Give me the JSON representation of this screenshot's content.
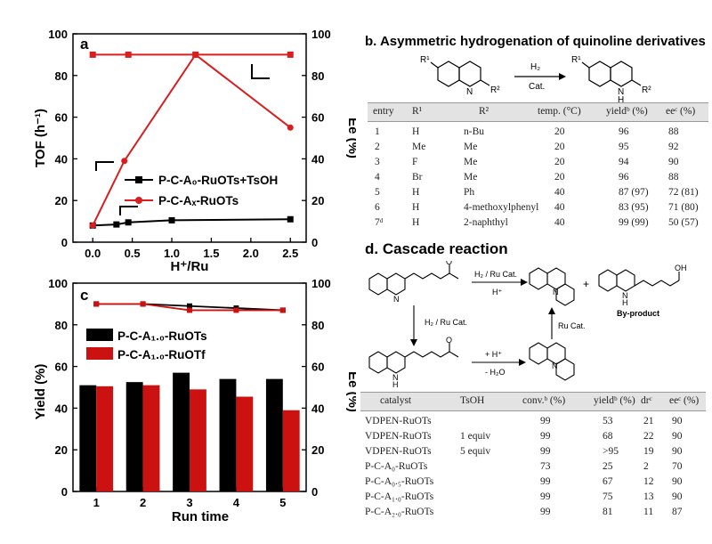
{
  "chart_data": [
    {
      "panel": "a",
      "type": "line",
      "xlabel": "H⁺/Ru",
      "ylabel": "TOF (h⁻¹)",
      "y2label": "Ee (%)",
      "xlim": [
        -0.25,
        2.7
      ],
      "ylim": [
        0,
        100
      ],
      "y2lim": [
        0,
        100
      ],
      "xticks": [
        "0.0",
        "0.5",
        "1.0",
        "1.5",
        "2.0",
        "2.5"
      ],
      "yticks": [
        "0",
        "20",
        "40",
        "60",
        "80",
        "100"
      ],
      "y2ticks": [
        "0",
        "20",
        "40",
        "60",
        "80",
        "100"
      ],
      "series": [
        {
          "name": "P-C-A₀-RuOTs+TsOH",
          "axis": "left",
          "color": "#000000",
          "marker": "square",
          "x": [
            0.0,
            0.3,
            0.45,
            1.0,
            2.5
          ],
          "y": [
            8,
            8.5,
            9.5,
            10.5,
            11
          ]
        },
        {
          "name": "P-C-Aₓ-RuOTs",
          "axis": "left",
          "color": "#d81e1e",
          "marker": "circle",
          "x": [
            0.0,
            0.4,
            1.3,
            2.5
          ],
          "y": [
            8,
            39,
            90,
            55
          ]
        },
        {
          "axis": "right",
          "color": "#d81e1e",
          "marker": "square",
          "x": [
            0.0,
            0.45,
            1.3,
            2.5
          ],
          "y": [
            90,
            90,
            90,
            90
          ]
        }
      ]
    },
    {
      "panel": "c",
      "type": "bar",
      "xlabel": "Run time",
      "ylabel": "Yield (%)",
      "y2label": "Ee (%)",
      "categories": [
        "1",
        "2",
        "3",
        "4",
        "5"
      ],
      "ylim": [
        0,
        100
      ],
      "y2lim": [
        0,
        100
      ],
      "yticks": [
        "0",
        "20",
        "40",
        "60",
        "80",
        "100"
      ],
      "y2ticks": [
        "0",
        "20",
        "40",
        "60",
        "80",
        "100"
      ],
      "series": [
        {
          "name": "P-C-A₁.₀-RuOTs",
          "type": "bar",
          "color": "#000000",
          "values": [
            51,
            52.5,
            57,
            54,
            54
          ]
        },
        {
          "name": "P-C-A₁.₀-RuOTf",
          "type": "bar",
          "color": "#cc1111",
          "values": [
            50.5,
            51,
            49,
            45.5,
            39
          ]
        },
        {
          "type": "line",
          "axis": "right",
          "color": "#000000",
          "values": [
            90,
            90,
            89,
            88,
            87
          ]
        },
        {
          "type": "line",
          "axis": "right",
          "color": "#cc1111",
          "values": [
            90,
            90,
            87,
            87,
            87
          ]
        }
      ]
    }
  ],
  "panel_a": {
    "label": "a"
  },
  "panel_c": {
    "label": "c"
  },
  "panel_b": {
    "title": "b. Asymmetric hydrogenation of quinoline derivatives",
    "scheme": {
      "r1": "R¹",
      "r2": "R²",
      "h2": "H₂",
      "cat": "Cat.",
      "nh": "N",
      "h": "H",
      "n": "N"
    },
    "headers": [
      "entry",
      "R¹",
      "R²",
      "temp. (°C)",
      "yieldᵇ (%)",
      "eeᶜ (%)"
    ],
    "rows": [
      [
        "1",
        "H",
        "n-Bu",
        "20",
        "96",
        "88"
      ],
      [
        "2",
        "Me",
        "Me",
        "20",
        "95",
        "92"
      ],
      [
        "3",
        "F",
        "Me",
        "20",
        "94",
        "90"
      ],
      [
        "4",
        "Br",
        "Me",
        "20",
        "96",
        "88"
      ],
      [
        "5",
        "H",
        "Ph",
        "40",
        "87 (97)",
        "72 (81)"
      ],
      [
        "6",
        "H",
        "4-methoxylphenyl",
        "40",
        "83 (95)",
        "71 (80)"
      ],
      [
        "7ᵈ",
        "H",
        "2-naphthyl",
        "40",
        "99 (99)",
        "50 (57)"
      ]
    ]
  },
  "panel_d": {
    "title": "d. Cascade reaction",
    "scheme": {
      "top_arrow_above": "H₂ / Ru Cat.",
      "top_arrow_below": "H⁺",
      "down_arrow": "H₂ / Ru Cat.",
      "mid_arrow_above": "+ H⁺",
      "mid_arrow_below": "- H₂O",
      "up_arrow": "Ru Cat.",
      "plus": "+",
      "byproduct": "By-product",
      "o": "O",
      "oh": "OH",
      "n": "N",
      "nh": "N",
      "h": "H"
    },
    "headers": [
      "catalyst",
      "TsOH",
      "conv.ᵇ (%)",
      "yieldᵇ (%)",
      "drᶜ",
      "eeᶜ (%)"
    ],
    "rows": [
      [
        "VDPEN-RuOTs",
        "",
        "99",
        "53",
        "21",
        "90"
      ],
      [
        "VDPEN-RuOTs",
        "1 equiv",
        "99",
        "68",
        "22",
        "90"
      ],
      [
        "VDPEN-RuOTs",
        "5 equiv",
        "99",
        ">95",
        "19",
        "90"
      ],
      [
        "P-C-A₀-RuOTs",
        "",
        "73",
        "25",
        "2",
        "70"
      ],
      [
        "P-C-A₀.₅-RuOTs",
        "",
        "99",
        "67",
        "12",
        "90"
      ],
      [
        "P-C-A₁.₀-RuOTs",
        "",
        "99",
        "75",
        "13",
        "90"
      ],
      [
        "P-C-A₂.₀-RuOTs",
        "",
        "99",
        "81",
        "11",
        "87"
      ]
    ]
  }
}
